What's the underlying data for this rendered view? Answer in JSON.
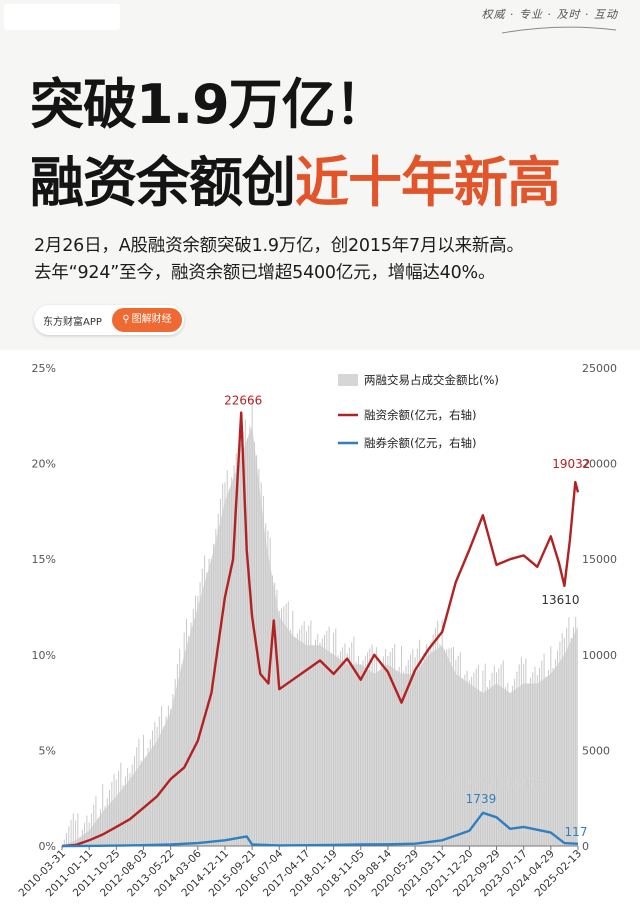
{
  "header": {
    "tagline": "权威 · 专业 · 及时 · 互动",
    "title_line1": "突破1.9万亿！",
    "title_line2_prefix": "融资余额创",
    "title_line2_highlight": "近十年新高",
    "subtitle_line1": "2月26日，A股融资余额突破1.9万亿，创2015年7月以来新高。",
    "subtitle_line2": "去年“924”至今，融资余额已增超5400亿元，增幅达40%。"
  },
  "app_badge": {
    "app_name": "东方财富APP",
    "tag_label": "图解财经",
    "tag_icon": "search-icon"
  },
  "watermark": "东方财富 图解财经",
  "colors": {
    "highlight": "#e2552a",
    "ratio_area": "#d6d6d6",
    "financing_line": "#b22222",
    "lending_line": "#2f7fc1",
    "badge": "#ef6a33"
  },
  "chart_data": {
    "type": "line",
    "x_tick_labels": [
      "2010-03-31",
      "2011-01-11",
      "2011-10-25",
      "2012-08-03",
      "2013-05-22",
      "2014-03-06",
      "2014-12-11",
      "2015-09-21",
      "2016-07-04",
      "2017-04-17",
      "2018-01-19",
      "2018-11-05",
      "2019-08-14",
      "2020-05-29",
      "2021-03-11",
      "2021-12-20",
      "2022-09-29",
      "2023-07-17",
      "2024-04-29",
      "2025-02-13"
    ],
    "left_axis": {
      "min": 0,
      "max": 25,
      "ticks": [
        "0%",
        "5%",
        "10%",
        "15%",
        "20%",
        "25%"
      ]
    },
    "right_axis": {
      "min": 0,
      "max": 25000,
      "ticks": [
        "0",
        "5000",
        "10000",
        "15000",
        "20000",
        "25000"
      ]
    },
    "legend_position": "top-right",
    "annotations": [
      "22666",
      "19032",
      "13610",
      "1739",
      "117"
    ],
    "series": [
      {
        "name": "两融交易占成交金额比(%)",
        "type": "area",
        "axis": "left",
        "x": [
          0,
          0.5,
          1,
          1.5,
          2,
          2.5,
          3,
          3.5,
          4,
          4.5,
          5,
          5.5,
          6,
          6.5,
          7,
          7.5,
          8,
          8.5,
          9,
          9.5,
          10,
          10.5,
          11,
          11.5,
          12,
          12.5,
          13,
          13.5,
          14,
          14.5,
          15,
          15.5,
          16,
          16.5,
          17,
          17.5,
          18,
          18.5,
          19
        ],
        "values": [
          0,
          0.3,
          0.8,
          1.8,
          2.6,
          3.5,
          4.5,
          5.5,
          7,
          10,
          12.5,
          15,
          18,
          20,
          22,
          16,
          12,
          11,
          10.5,
          10.5,
          10,
          9.5,
          9.5,
          9,
          9.5,
          9,
          9,
          10,
          10.5,
          9,
          8.5,
          8,
          8.5,
          8,
          8.5,
          8.5,
          9,
          10,
          11.5
        ]
      },
      {
        "name": "融资余额(亿元，右轴)",
        "type": "line",
        "axis": "right",
        "x": [
          0,
          0.5,
          1,
          1.5,
          2,
          2.5,
          3,
          3.5,
          4,
          4.5,
          5,
          5.5,
          6,
          6.3,
          6.6,
          6.8,
          7,
          7.3,
          7.6,
          7.8,
          8,
          8.5,
          9,
          9.5,
          10,
          10.5,
          11,
          11.5,
          12,
          12.5,
          13,
          13.5,
          14,
          14.5,
          15,
          15.5,
          16,
          16.5,
          17,
          17.5,
          18,
          18.3,
          18.5,
          18.7,
          18.9,
          19
        ],
        "values": [
          0,
          50,
          300,
          600,
          1000,
          1400,
          2000,
          2600,
          3500,
          4100,
          5500,
          8000,
          13000,
          15000,
          22666,
          15500,
          12000,
          9000,
          8500,
          11800,
          8200,
          8700,
          9200,
          9700,
          9000,
          9800,
          8700,
          10000,
          9100,
          7500,
          9200,
          10300,
          11200,
          13800,
          15500,
          17300,
          14700,
          15000,
          15200,
          14600,
          16200,
          14800,
          13610,
          16000,
          19032,
          18500
        ]
      },
      {
        "name": "融券余额(亿元，右轴)",
        "type": "line",
        "axis": "right",
        "x": [
          0,
          1,
          2,
          3,
          4,
          5,
          6,
          6.8,
          7,
          8,
          9,
          10,
          11,
          12,
          13,
          14,
          15,
          15.5,
          16,
          16.5,
          17,
          18,
          18.5,
          19
        ],
        "values": [
          0,
          5,
          20,
          40,
          80,
          150,
          300,
          500,
          80,
          30,
          40,
          50,
          80,
          90,
          120,
          300,
          800,
          1739,
          1500,
          900,
          1000,
          700,
          150,
          117
        ]
      }
    ]
  }
}
